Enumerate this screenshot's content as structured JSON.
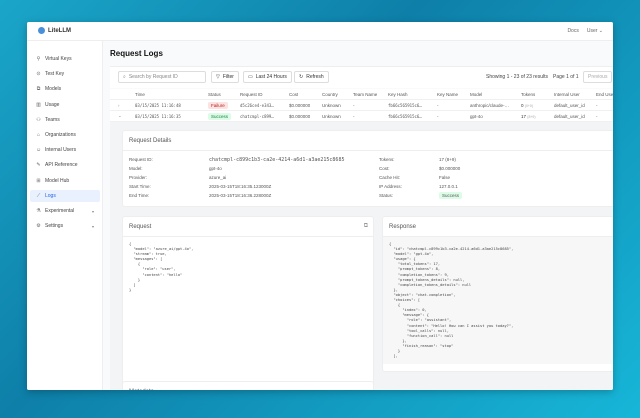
{
  "app": {
    "name": "LiteLLM",
    "docs": "Docs",
    "user": "User"
  },
  "sidebar": {
    "items": [
      {
        "label": "Virtual Keys",
        "icon": "key-icon"
      },
      {
        "label": "Test Key",
        "icon": "play-icon"
      },
      {
        "label": "Models",
        "icon": "layers-icon"
      },
      {
        "label": "Usage",
        "icon": "bar-chart-icon"
      },
      {
        "label": "Teams",
        "icon": "team-icon"
      },
      {
        "label": "Organizations",
        "icon": "bank-icon"
      },
      {
        "label": "Internal Users",
        "icon": "user-icon"
      },
      {
        "label": "API Reference",
        "icon": "api-icon"
      },
      {
        "label": "Model Hub",
        "icon": "grid-icon"
      },
      {
        "label": "Logs",
        "icon": "line-chart-icon",
        "active": true
      },
      {
        "label": "Experimental",
        "icon": "experiment-icon",
        "expandable": true
      },
      {
        "label": "Settings",
        "icon": "gear-icon",
        "expandable": true
      }
    ]
  },
  "page": {
    "title": "Request Logs"
  },
  "toolbar": {
    "search_placeholder": "Search by Request ID",
    "filter": "Filter",
    "range": "Last 24 Hours",
    "refresh": "Refresh",
    "showing": "Showing 1 - 23 of 23 results",
    "page": "Page 1 of 1",
    "previous": "Previous"
  },
  "table": {
    "headers": [
      "Time",
      "Status",
      "Request ID",
      "Cost",
      "Country",
      "Team Name",
      "Key Hash",
      "Key Name",
      "Model",
      "Tokens",
      "Internal User",
      "End User"
    ],
    "rows": [
      {
        "time": "03/15/2025 11:16:48 AM",
        "status": "Failure",
        "request_id": "d5c26ce4-e343…",
        "cost": "$0.000000",
        "country": "Unknown",
        "team": "-",
        "key_hash": "fb66c565915c6…",
        "key_name": "-",
        "model": "anthropic/claude-…",
        "tokens": "0",
        "tokens_detail": "(0+0)",
        "internal_user": "default_user_id",
        "end_user": "-"
      },
      {
        "time": "03/15/2025 11:16:35 AM",
        "status": "Success",
        "request_id": "chatcmpl-c899…",
        "cost": "$0.000000",
        "country": "Unknown",
        "team": "-",
        "key_hash": "fb66c565915c6…",
        "key_name": "-",
        "model": "gpt-4o",
        "tokens": "17",
        "tokens_detail": "(8+9)",
        "internal_user": "default_user_id",
        "end_user": "-"
      }
    ]
  },
  "details": {
    "title": "Request Details",
    "left": [
      {
        "k": "Request ID:",
        "v": "chatcmpl-c899c1b3-ca2e-4214-a6d1-a3ae215c8685"
      },
      {
        "k": "Model:",
        "v": "gpt-4o"
      },
      {
        "k": "Provider:",
        "v": "azure_ai"
      },
      {
        "k": "Start Time:",
        "v": "2025-03-15T18:16:35.123000Z"
      },
      {
        "k": "End Time:",
        "v": "2025-03-15T18:16:36.228000Z"
      }
    ],
    "right": [
      {
        "k": "Tokens:",
        "v": "17 (8+9)"
      },
      {
        "k": "Cost:",
        "v": "$0.000000"
      },
      {
        "k": "Cache Hit:",
        "v": "False"
      },
      {
        "k": "IP Address:",
        "v": "127.0.0.1"
      },
      {
        "k": "Status:",
        "v": "Success"
      }
    ]
  },
  "request": {
    "title": "Request",
    "body": "{\n  \"model\": \"azure_ai/gpt-4o\",\n  \"stream\": true,\n  \"messages\": [\n    {\n      \"role\": \"user\",\n      \"content\": \"hello\"\n    }\n  ]\n}"
  },
  "response": {
    "title": "Response",
    "body": "{\n  \"id\": \"chatcmpl-c899c1b3-ca2e-4214-a6d1-a3ae215c8685\",\n  \"model\": \"gpt-4o\",\n  \"usage\": {\n    \"total_tokens\": 17,\n    \"prompt_tokens\": 8,\n    \"completion_tokens\": 9,\n    \"prompt_tokens_details\": null,\n    \"completion_tokens_details\": null\n  },\n  \"object\": \"chat.completion\",\n  \"choices\": [\n    {\n      \"index\": 0,\n      \"message\": {\n        \"role\": \"assistant\",\n        \"content\": \"Hello! How can I assist you today?\",\n        \"tool_calls\": null,\n        \"function_call\": null\n      },\n      \"finish_reason\": \"stop\"\n    }\n  ],"
  },
  "metadata": {
    "title": "Metadata"
  }
}
